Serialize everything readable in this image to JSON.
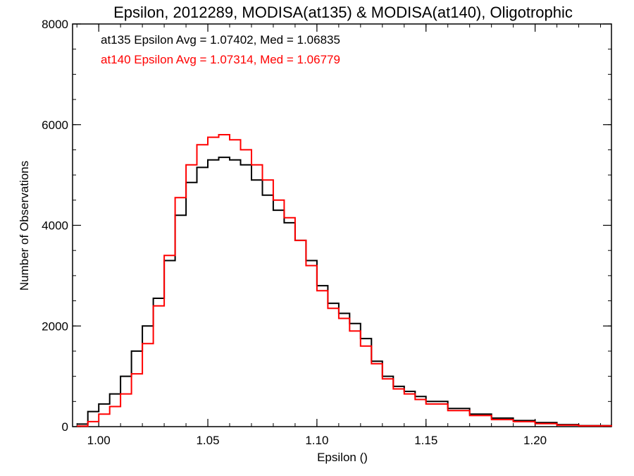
{
  "chart_data": {
    "type": "line",
    "title": "Epsilon, 2012289, MODISA(at135) & MODISA(at140), Oligotrophic",
    "xlabel": "Epsilon ()",
    "ylabel": "Number of Observations",
    "xlim": [
      0.988,
      1.235
    ],
    "ylim": [
      0,
      8000
    ],
    "grid": false,
    "x_ticks": [
      1.0,
      1.05,
      1.1,
      1.15,
      1.2
    ],
    "x_tick_labels": [
      "1.00",
      "1.05",
      "1.10",
      "1.15",
      "1.20"
    ],
    "y_ticks": [
      0,
      2000,
      4000,
      6000,
      8000
    ],
    "y_tick_labels": [
      "0",
      "2000",
      "4000",
      "6000",
      "8000"
    ],
    "annotations": [
      {
        "text": "at135 Epsilon Avg = 1.07402, Med = 1.06835",
        "color": "#000000"
      },
      {
        "text": "at140 Epsilon Avg = 1.07314, Med = 1.06779",
        "color": "#ff0000"
      }
    ],
    "series": [
      {
        "color": "#000000",
        "x": [
          0.99,
          0.995,
          1.0,
          1.005,
          1.01,
          1.015,
          1.02,
          1.025,
          1.03,
          1.035,
          1.04,
          1.045,
          1.05,
          1.055,
          1.06,
          1.065,
          1.07,
          1.075,
          1.08,
          1.085,
          1.09,
          1.095,
          1.1,
          1.105,
          1.11,
          1.115,
          1.12,
          1.125,
          1.13,
          1.135,
          1.14,
          1.145,
          1.15,
          1.16,
          1.17,
          1.18,
          1.19,
          1.2,
          1.21,
          1.22,
          1.235
        ],
        "y": [
          50,
          300,
          450,
          650,
          1000,
          1500,
          2000,
          2550,
          3300,
          4200,
          4850,
          5150,
          5300,
          5350,
          5300,
          5200,
          4900,
          4600,
          4300,
          4050,
          3700,
          3300,
          2800,
          2450,
          2250,
          2050,
          1750,
          1300,
          1000,
          800,
          700,
          600,
          500,
          360,
          250,
          170,
          120,
          80,
          40,
          20,
          10
        ]
      },
      {
        "color": "#ff0000",
        "x": [
          0.99,
          0.995,
          1.0,
          1.005,
          1.01,
          1.015,
          1.02,
          1.025,
          1.03,
          1.035,
          1.04,
          1.045,
          1.05,
          1.055,
          1.06,
          1.065,
          1.07,
          1.075,
          1.08,
          1.085,
          1.09,
          1.095,
          1.1,
          1.105,
          1.11,
          1.115,
          1.12,
          1.125,
          1.13,
          1.135,
          1.14,
          1.145,
          1.15,
          1.16,
          1.17,
          1.18,
          1.19,
          1.2,
          1.21,
          1.22,
          1.235
        ],
        "y": [
          10,
          100,
          250,
          400,
          650,
          1050,
          1650,
          2400,
          3400,
          4550,
          5200,
          5600,
          5750,
          5800,
          5700,
          5500,
          5200,
          4900,
          4500,
          4150,
          3700,
          3200,
          2700,
          2350,
          2150,
          1900,
          1600,
          1250,
          950,
          750,
          650,
          540,
          450,
          320,
          220,
          140,
          100,
          60,
          30,
          15,
          5
        ]
      }
    ]
  }
}
